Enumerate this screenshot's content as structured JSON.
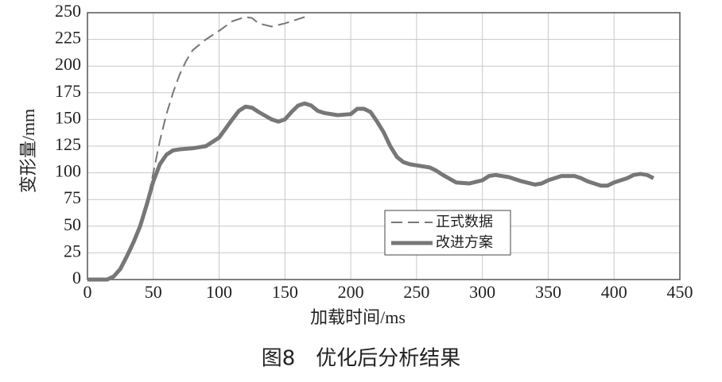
{
  "chart_data": {
    "type": "line",
    "caption": "图8　优化后分析结果",
    "xlabel": "加载时间/ms",
    "ylabel": "变形量/mm",
    "xlim": [
      0,
      450
    ],
    "xticks": [
      0,
      50,
      100,
      150,
      200,
      250,
      300,
      350,
      400,
      450
    ],
    "ylim": [
      0,
      250
    ],
    "yticks": [
      0,
      25,
      50,
      75,
      100,
      125,
      150,
      175,
      200,
      225,
      250
    ],
    "grid": true,
    "series": [
      {
        "name": "正式数据",
        "color": "#777777",
        "style": "dashed",
        "x": [
          0,
          15,
          20,
          25,
          30,
          35,
          40,
          45,
          50,
          55,
          60,
          65,
          70,
          75,
          80,
          90,
          100,
          110,
          120,
          125,
          130,
          140,
          150,
          160,
          165
        ],
        "values": [
          0,
          0,
          3,
          10,
          20,
          32,
          48,
          70,
          100,
          130,
          155,
          175,
          192,
          205,
          215,
          225,
          233,
          242,
          246,
          245,
          240,
          237,
          240,
          244,
          246
        ]
      },
      {
        "name": "改进方案",
        "color": "#777777",
        "style": "solid",
        "x": [
          0,
          15,
          20,
          25,
          30,
          35,
          40,
          45,
          50,
          55,
          60,
          65,
          70,
          80,
          90,
          100,
          110,
          115,
          120,
          125,
          130,
          140,
          145,
          150,
          155,
          160,
          165,
          170,
          175,
          180,
          190,
          200,
          205,
          210,
          215,
          220,
          225,
          230,
          235,
          240,
          245,
          250,
          260,
          265,
          270,
          280,
          290,
          300,
          305,
          310,
          320,
          330,
          340,
          345,
          350,
          360,
          370,
          375,
          380,
          390,
          395,
          400,
          410,
          415,
          420,
          425,
          430
        ],
        "values": [
          0,
          0,
          3,
          10,
          22,
          35,
          50,
          70,
          92,
          108,
          117,
          121,
          122,
          123,
          125,
          133,
          150,
          158,
          162,
          161,
          157,
          150,
          148,
          150,
          157,
          163,
          165,
          163,
          158,
          156,
          154,
          155,
          160,
          160,
          157,
          148,
          138,
          125,
          115,
          110,
          108,
          107,
          105,
          102,
          98,
          91,
          90,
          93,
          97,
          98,
          96,
          92,
          89,
          90,
          93,
          97,
          97,
          95,
          92,
          88,
          88,
          91,
          95,
          98,
          99,
          98,
          95
        ]
      }
    ]
  }
}
